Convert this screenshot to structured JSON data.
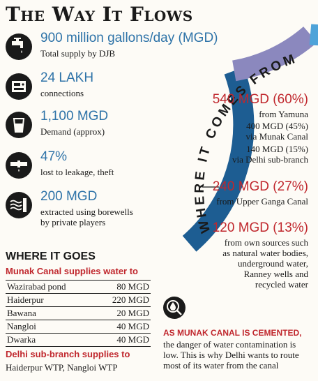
{
  "title": "The Way It Flows",
  "stats": [
    {
      "value": "900 million gallons/day (MGD)",
      "desc": [
        "Total supply by DJB"
      ],
      "icon": "water-tap-icon"
    },
    {
      "value": "24 LAKH",
      "desc": [
        "connections"
      ],
      "icon": "water-meter-icon"
    },
    {
      "value": "1,100 MGD",
      "desc": [
        "Demand (approx)"
      ],
      "icon": "water-glass-icon"
    },
    {
      "value": "47%",
      "desc": [
        "lost to leakage, theft"
      ],
      "icon": "leaking-pipe-icon"
    },
    {
      "value": "200 MGD",
      "desc": [
        "extracted using borewells",
        "by private players"
      ],
      "icon": "borewell-icon"
    }
  ],
  "arc_label": "WHERE IT COMES FROM",
  "sources": [
    {
      "value": "540 MGD (60%)",
      "fraction": 0.6,
      "color": "#1d5d92",
      "lines": [
        "from Yamuna",
        "400 MGD (45%)",
        "via Munak Canal",
        "140 MGD (15%)",
        "via Delhi sub-branch"
      ]
    },
    {
      "value": "240 MGD (27%)",
      "fraction": 0.27,
      "color": "#8b88be",
      "lines": [
        "from Upper Ganga Canal"
      ]
    },
    {
      "value": "120 MGD (13%)",
      "fraction": 0.13,
      "color": "#4ea3d9",
      "lines": [
        "from own sources such",
        "as natural water bodies,",
        "underground water,",
        "Ranney wells and",
        "recycled water"
      ]
    }
  ],
  "where_it_goes": {
    "title": "WHERE IT GOES",
    "munak_title": "Munak Canal supplies water to",
    "munak_rows": [
      {
        "place": "Wazirabad pond",
        "value": "80 MGD"
      },
      {
        "place": "Haiderpur",
        "value": "220 MGD"
      },
      {
        "place": "Bawana",
        "value": "20 MGD"
      },
      {
        "place": "Nangloi",
        "value": "40 MGD"
      },
      {
        "place": "Dwarka",
        "value": "40 MGD"
      }
    ],
    "sub_title": "Delhi sub-branch supplies to",
    "sub_list": "Haiderpur WTP, Nangloi WTP"
  },
  "note": {
    "icon": "water-drop-magnifier-icon",
    "headline": "AS MUNAK CANAL IS CEMENTED,",
    "body": "the danger of water contamination is low. This is why Delhi wants to route most of its water from the canal"
  }
}
